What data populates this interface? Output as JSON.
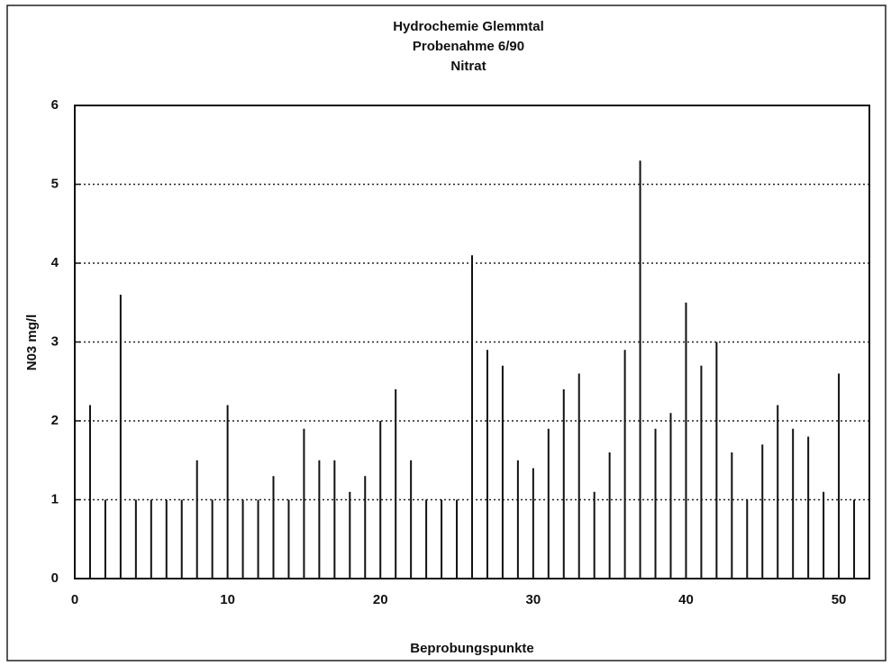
{
  "chart_data": {
    "type": "bar",
    "title": [
      "Hydrochemie Glemmtal",
      "Probenahme 6/90",
      "Nitrat"
    ],
    "x_label": "Beprobungspunkte",
    "y_label": "N03 mg/l",
    "x": [
      1,
      2,
      3,
      4,
      5,
      6,
      7,
      8,
      9,
      10,
      11,
      12,
      13,
      14,
      15,
      16,
      17,
      18,
      19,
      20,
      21,
      22,
      23,
      24,
      25,
      26,
      27,
      28,
      29,
      30,
      31,
      32,
      33,
      34,
      35,
      36,
      37,
      38,
      39,
      40,
      41,
      42,
      43,
      44,
      45,
      46,
      47,
      48,
      49,
      50,
      51
    ],
    "values": [
      2.2,
      1.0,
      3.6,
      1.0,
      1.0,
      1.0,
      1.0,
      1.5,
      1.0,
      2.2,
      1.0,
      1.0,
      1.3,
      1.0,
      1.9,
      1.5,
      1.5,
      1.1,
      1.3,
      2.0,
      2.4,
      1.5,
      1.0,
      1.0,
      1.0,
      4.1,
      2.9,
      2.7,
      1.5,
      1.4,
      1.9,
      2.4,
      2.6,
      1.1,
      1.6,
      2.9,
      5.3,
      1.9,
      2.1,
      3.5,
      2.7,
      3.0,
      1.6,
      1.0,
      1.7,
      2.2,
      1.9,
      1.8,
      1.1,
      2.6,
      1.0
    ],
    "color": "#111111",
    "xlim": [
      0,
      52
    ],
    "xticks": [
      0,
      10,
      20,
      30,
      40,
      50
    ],
    "ylim": [
      0,
      6
    ],
    "yticks": [
      0,
      1,
      2,
      3,
      4,
      5,
      6
    ],
    "grid": true
  }
}
